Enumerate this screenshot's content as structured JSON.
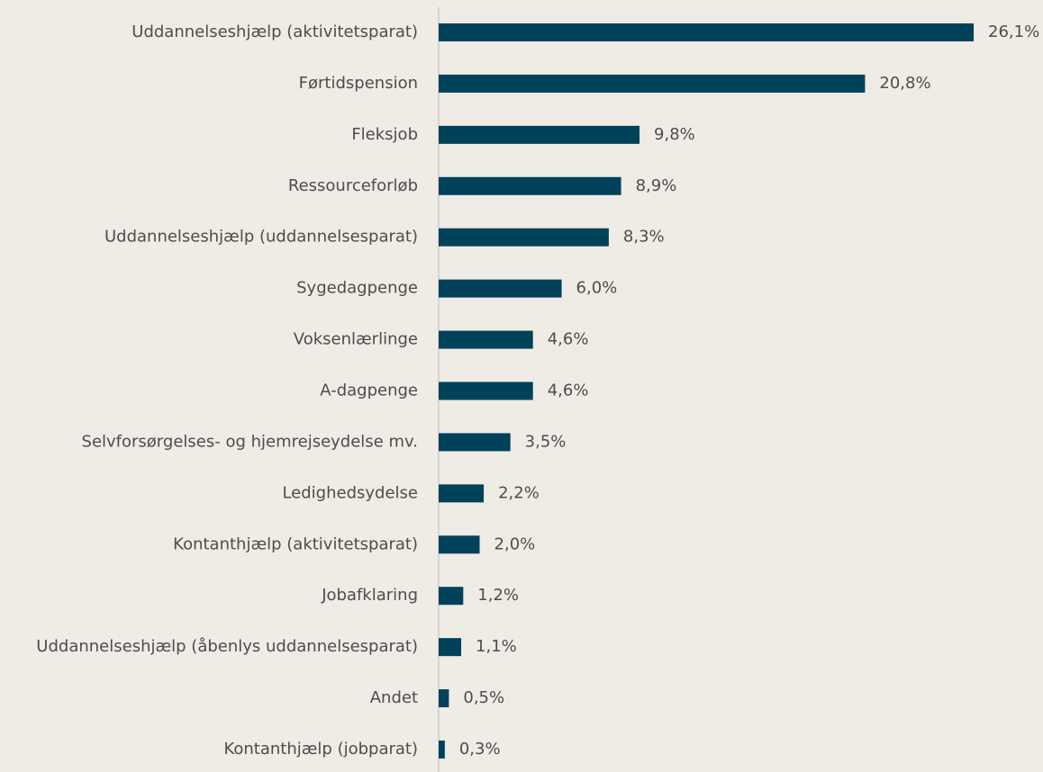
{
  "chart_data": {
    "type": "bar",
    "orientation": "horizontal",
    "color": "#00425a",
    "categories": [
      "Uddannelseshjælp (aktivitetsparat)",
      "Førtidspension",
      "Fleksjob",
      "Ressourceforløb",
      "Uddannelseshjælp (uddannelsesparat)",
      "Sygedagpenge",
      "Voksenlærlinge",
      "A-dagpenge",
      "Selvforsørgelses- og hjemrejseydelse mv.",
      "Ledighedsydelse",
      "Kontanthjælp (aktivitetsparat)",
      "Jobafklaring",
      "Uddannelseshjælp (åbenlys uddannelsesparat)",
      "Andet",
      "Kontanthjælp (jobparat)"
    ],
    "values": [
      26.1,
      20.8,
      9.8,
      8.9,
      8.3,
      6.0,
      4.6,
      4.6,
      3.5,
      2.2,
      2.0,
      1.2,
      1.1,
      0.5,
      0.3
    ],
    "value_labels": [
      "26,1%",
      "20,8%",
      "9,8%",
      "8,9%",
      "8,3%",
      "6,0%",
      "4,6%",
      "4,6%",
      "3,5%",
      "2,2%",
      "2,0%",
      "1,2%",
      "1,1%",
      "0,5%",
      "0,3%"
    ]
  }
}
